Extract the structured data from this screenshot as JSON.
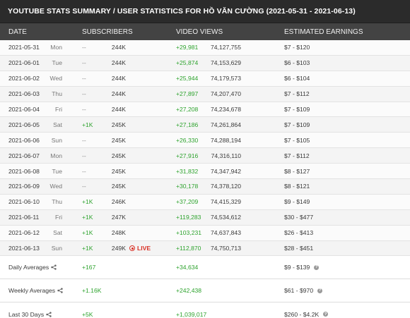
{
  "title": "YOUTUBE STATS SUMMARY / USER STATISTICS FOR HỒ VĂN CƯỜNG (2021-05-31 - 2021-06-13)",
  "columns": {
    "date": "DATE",
    "subscribers": "SUBSCRIBERS",
    "video_views": "VIDEO VIEWS",
    "earnings": "ESTIMATED EARNINGS"
  },
  "rows": [
    {
      "date": "2021-05-31",
      "day": "Mon",
      "sub_change": "--",
      "sub_total": "244K",
      "views_change": "+29,981",
      "views_total": "74,127,755",
      "earnings": "$7  -  $120"
    },
    {
      "date": "2021-06-01",
      "day": "Tue",
      "sub_change": "--",
      "sub_total": "244K",
      "views_change": "+25,874",
      "views_total": "74,153,629",
      "earnings": "$6  -  $103"
    },
    {
      "date": "2021-06-02",
      "day": "Wed",
      "sub_change": "--",
      "sub_total": "244K",
      "views_change": "+25,944",
      "views_total": "74,179,573",
      "earnings": "$6  -  $104"
    },
    {
      "date": "2021-06-03",
      "day": "Thu",
      "sub_change": "--",
      "sub_total": "244K",
      "views_change": "+27,897",
      "views_total": "74,207,470",
      "earnings": "$7  -  $112"
    },
    {
      "date": "2021-06-04",
      "day": "Fri",
      "sub_change": "--",
      "sub_total": "244K",
      "views_change": "+27,208",
      "views_total": "74,234,678",
      "earnings": "$7  -  $109"
    },
    {
      "date": "2021-06-05",
      "day": "Sat",
      "sub_change": "+1K",
      "sub_total": "245K",
      "views_change": "+27,186",
      "views_total": "74,261,864",
      "earnings": "$7  -  $109"
    },
    {
      "date": "2021-06-06",
      "day": "Sun",
      "sub_change": "--",
      "sub_total": "245K",
      "views_change": "+26,330",
      "views_total": "74,288,194",
      "earnings": "$7  -  $105"
    },
    {
      "date": "2021-06-07",
      "day": "Mon",
      "sub_change": "--",
      "sub_total": "245K",
      "views_change": "+27,916",
      "views_total": "74,316,110",
      "earnings": "$7  -  $112"
    },
    {
      "date": "2021-06-08",
      "day": "Tue",
      "sub_change": "--",
      "sub_total": "245K",
      "views_change": "+31,832",
      "views_total": "74,347,942",
      "earnings": "$8  -  $127"
    },
    {
      "date": "2021-06-09",
      "day": "Wed",
      "sub_change": "--",
      "sub_total": "245K",
      "views_change": "+30,178",
      "views_total": "74,378,120",
      "earnings": "$8  -  $121"
    },
    {
      "date": "2021-06-10",
      "day": "Thu",
      "sub_change": "+1K",
      "sub_total": "246K",
      "views_change": "+37,209",
      "views_total": "74,415,329",
      "earnings": "$9  -  $149"
    },
    {
      "date": "2021-06-11",
      "day": "Fri",
      "sub_change": "+1K",
      "sub_total": "247K",
      "views_change": "+119,283",
      "views_total": "74,534,612",
      "earnings": "$30  -  $477"
    },
    {
      "date": "2021-06-12",
      "day": "Sat",
      "sub_change": "+1K",
      "sub_total": "248K",
      "views_change": "+103,231",
      "views_total": "74,637,843",
      "earnings": "$26  -  $413"
    },
    {
      "date": "2021-06-13",
      "day": "Sun",
      "sub_change": "+1K",
      "sub_total": "249K",
      "views_change": "+112,870",
      "views_total": "74,750,713",
      "earnings": "$28  -  $451",
      "live": "LIVE"
    }
  ],
  "summary": [
    {
      "label": "Daily Averages",
      "subscribers": "+167",
      "views": "+34,634",
      "earnings": "$9 - $139"
    },
    {
      "label": "Weekly Averages",
      "subscribers": "+1.16K",
      "views": "+242,438",
      "earnings": "$61 - $970"
    },
    {
      "label": "Last 30 Days",
      "subscribers": "+5K",
      "views": "+1,039,017",
      "earnings": "$260 - $4.2K"
    }
  ],
  "icons": {
    "share": "share-icon",
    "help": "question-icon",
    "live": "live-record-icon"
  },
  "colors": {
    "title_bg": "#2b2b2b",
    "header_bg": "#434343",
    "positive": "#2ea32e",
    "live": "#d93025"
  }
}
